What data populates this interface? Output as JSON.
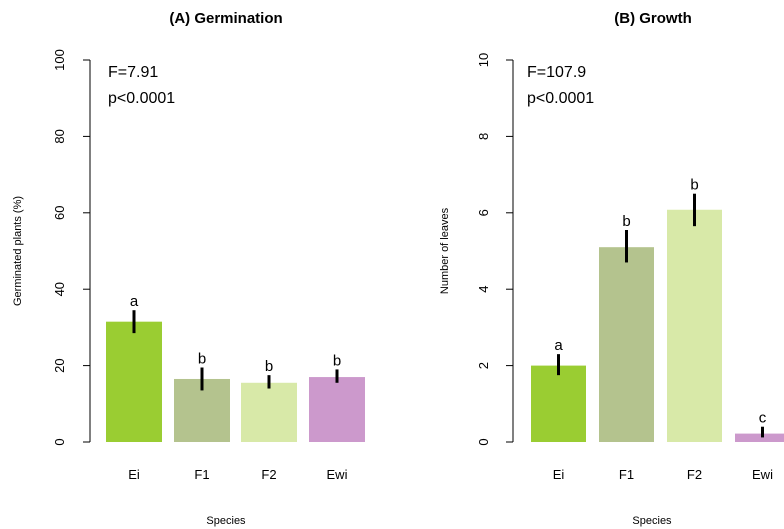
{
  "chart_data": [
    {
      "type": "bar",
      "title": "(A) Germination",
      "xlabel": "Species",
      "ylabel": "Germinated plants (%)",
      "ylim": [
        0,
        100
      ],
      "yticks": [
        0,
        20,
        40,
        60,
        80,
        100
      ],
      "categories": [
        "Ei",
        "F1",
        "F2",
        "Ewi"
      ],
      "values": [
        31.5,
        16.5,
        15.5,
        17.0
      ],
      "error_low": [
        28.5,
        13.5,
        14.0,
        15.5
      ],
      "error_high": [
        34.5,
        19.5,
        17.5,
        19.0
      ],
      "letters": [
        "a",
        "b",
        "b",
        "b"
      ],
      "colors": [
        "#9acd32",
        "#b4c38e",
        "#d8e9a8",
        "#cc99cc"
      ],
      "annotation": [
        "F=7.91",
        "p<0.0001"
      ],
      "grid": false
    },
    {
      "type": "bar",
      "title": "(B) Growth",
      "xlabel": "Species",
      "ylabel": "Number of leaves",
      "ylim": [
        0,
        10
      ],
      "yticks": [
        0,
        2,
        4,
        6,
        8,
        10
      ],
      "categories": [
        "Ei",
        "F1",
        "F2",
        "Ewi"
      ],
      "values": [
        2.0,
        5.1,
        6.08,
        0.22
      ],
      "error_low": [
        1.75,
        4.7,
        5.65,
        0.12
      ],
      "error_high": [
        2.3,
        5.55,
        6.5,
        0.4
      ],
      "letters": [
        "a",
        "b",
        "b",
        "c"
      ],
      "colors": [
        "#9acd32",
        "#b4c38e",
        "#d8e9a8",
        "#cc99cc"
      ],
      "annotation": [
        "F=107.9",
        "p<0.0001"
      ],
      "grid": false
    }
  ]
}
